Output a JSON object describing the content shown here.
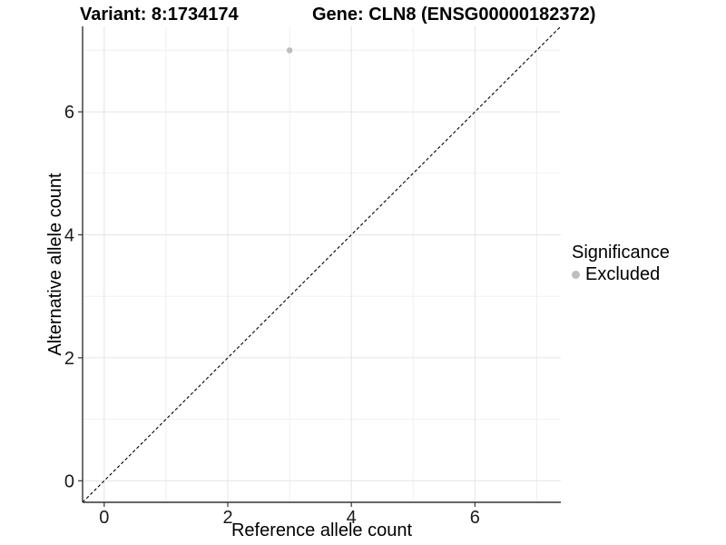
{
  "chart_data": {
    "type": "scatter",
    "title_left": "Variant: 8:1734174",
    "title_right": "Gene: CLN8 (ENSG00000182372)",
    "xlabel": "Reference allele count",
    "ylabel": "Alternative allele count",
    "xlim": [
      -0.35,
      7.39
    ],
    "ylim": [
      -0.35,
      7.39
    ],
    "x_ticks": [
      0,
      2,
      4,
      6
    ],
    "y_ticks": [
      0,
      2,
      4,
      6
    ],
    "major_gridlines": [
      0,
      2,
      4,
      6
    ],
    "minor_gridlines": [
      1,
      3,
      5,
      7
    ],
    "grid": true,
    "points": [
      {
        "x": 3,
        "y": 7,
        "significance": "Excluded"
      }
    ],
    "reference_line": {
      "equation": "y = x",
      "style": "dashed"
    },
    "legend": {
      "title": "Significance",
      "position": "right",
      "entries": [
        {
          "label": "Excluded",
          "color": "#bebebe",
          "marker": "circle"
        }
      ]
    },
    "colors": {
      "point": "#bebebe",
      "grid_major": "#e4e4e4",
      "grid_minor": "#f0f0f0",
      "axis_line": "#333333",
      "tick_text": "#1a1a1a",
      "reference_line": "#000000",
      "background": "#ffffff"
    }
  }
}
